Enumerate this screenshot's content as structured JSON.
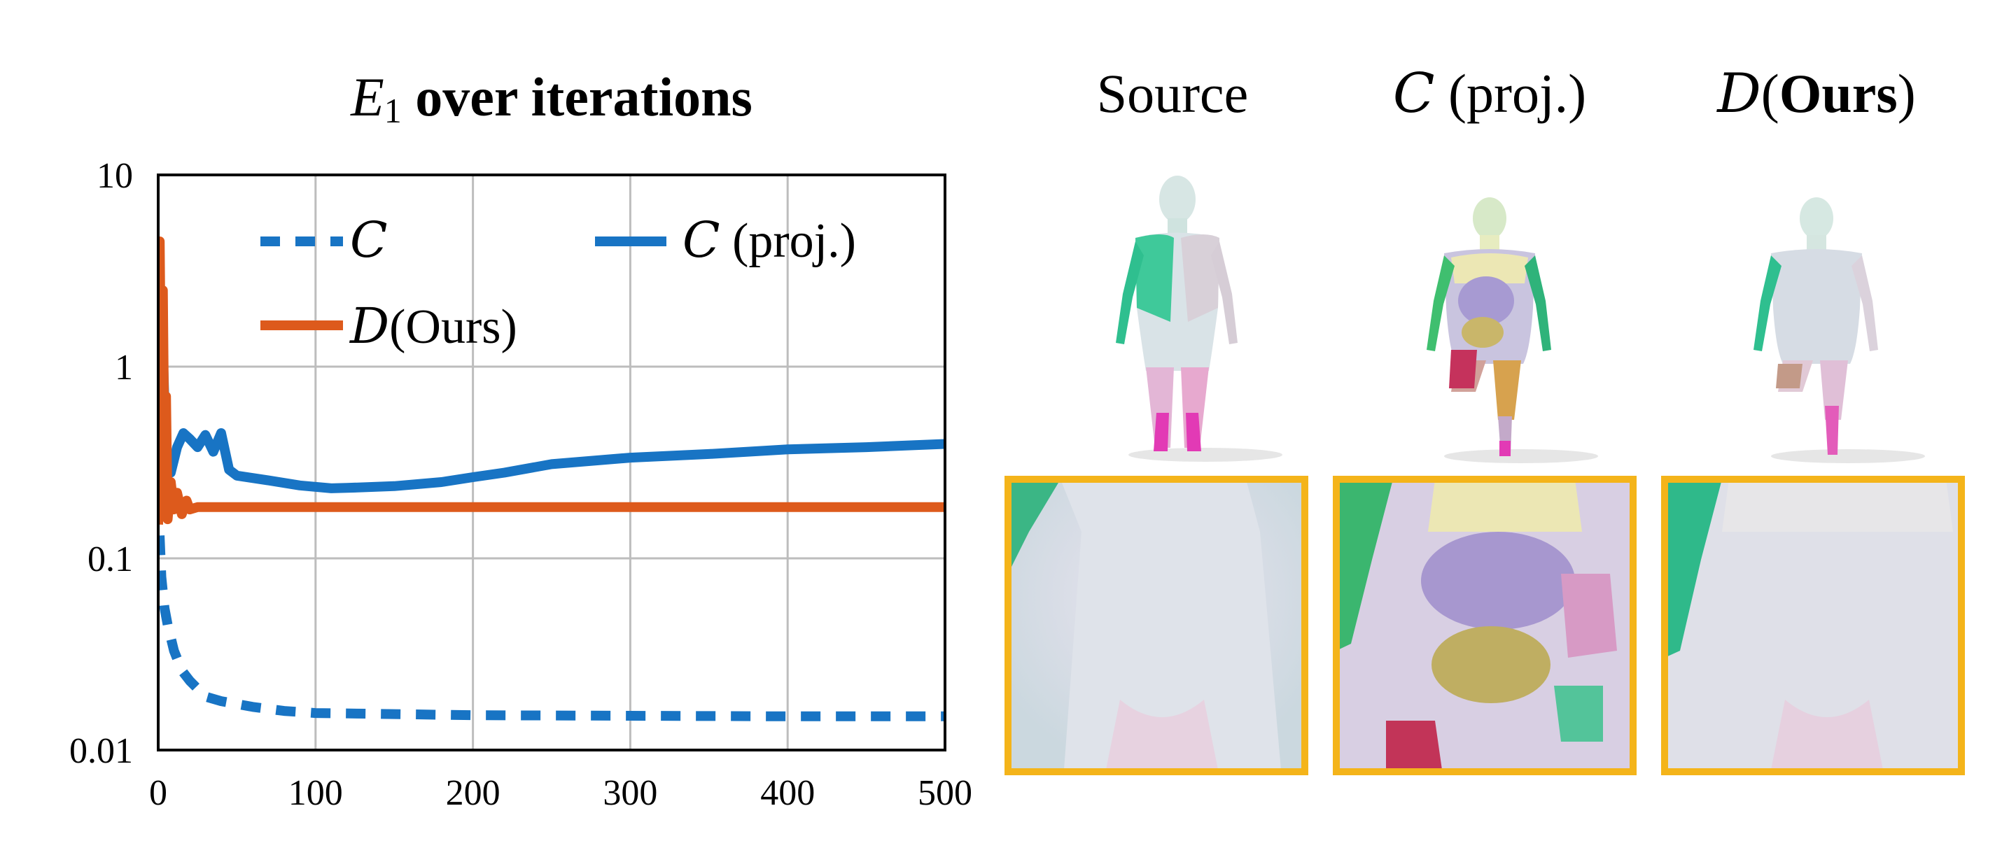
{
  "chart_data": {
    "type": "line",
    "title_var": "E",
    "title_sub": "1",
    "title_rest": " over iterations",
    "xlim": [
      0,
      500
    ],
    "ylim": [
      0.01,
      10
    ],
    "yscale": "log",
    "xticks": [
      0,
      100,
      200,
      300,
      400,
      500
    ],
    "xtick_labels": [
      "0",
      "100",
      "200",
      "300",
      "400",
      "500"
    ],
    "yticks": [
      0.01,
      0.1,
      1,
      10
    ],
    "ytick_labels": [
      "0.01",
      "0.1",
      "1",
      "10"
    ],
    "grid": true,
    "legend_position": "top",
    "series": [
      {
        "name": "C",
        "style": "dashed",
        "color": "#1874c4",
        "x": [
          0,
          2,
          4,
          6,
          10,
          15,
          20,
          30,
          40,
          60,
          80,
          100,
          150,
          200,
          300,
          400,
          500
        ],
        "y": [
          0.2,
          0.08,
          0.055,
          0.045,
          0.033,
          0.026,
          0.023,
          0.019,
          0.018,
          0.0168,
          0.016,
          0.0156,
          0.0154,
          0.0152,
          0.0151,
          0.015,
          0.015
        ]
      },
      {
        "name": "C (proj.)",
        "style": "solid",
        "color": "#1874c4",
        "x": [
          0,
          3,
          5,
          8,
          12,
          16,
          20,
          25,
          30,
          35,
          40,
          45,
          50,
          70,
          90,
          110,
          120,
          150,
          180,
          200,
          220,
          250,
          300,
          350,
          400,
          450,
          500
        ],
        "y": [
          0.17,
          1.2,
          0.35,
          0.28,
          0.38,
          0.45,
          0.42,
          0.38,
          0.44,
          0.36,
          0.45,
          0.29,
          0.27,
          0.255,
          0.24,
          0.232,
          0.233,
          0.238,
          0.25,
          0.265,
          0.28,
          0.31,
          0.335,
          0.35,
          0.37,
          0.38,
          0.395
        ]
      },
      {
        "name": "D(Ours)",
        "style": "solid",
        "color": "#dd5a1c",
        "x": [
          0,
          1,
          2,
          3,
          4,
          5,
          6,
          8,
          10,
          12,
          15,
          18,
          20,
          25,
          40,
          100,
          200,
          300,
          400,
          500
        ],
        "y": [
          0.15,
          4.5,
          0.5,
          2.5,
          0.3,
          0.7,
          0.16,
          0.25,
          0.18,
          0.22,
          0.17,
          0.2,
          0.18,
          0.185,
          0.185,
          0.185,
          0.185,
          0.185,
          0.185,
          0.185
        ]
      }
    ],
    "legend": [
      {
        "symbol": "C",
        "suffix": ""
      },
      {
        "symbol": "C",
        "suffix": " (proj.)"
      },
      {
        "symbol": "D",
        "suffix": "(Ours)"
      }
    ]
  },
  "panels": [
    {
      "title_main": "Source",
      "title_prefix": "",
      "title_bold": "",
      "title_suffix": ""
    },
    {
      "title_main": "",
      "title_prefix": "C",
      "title_bold": "",
      "title_suffix": " (proj.)"
    },
    {
      "title_main": "",
      "title_prefix": "D",
      "title_bold": "Ours",
      "title_suffix": ")"
    }
  ],
  "colors": {
    "frame": "#f4b41a",
    "grid": "#bdbdbd",
    "blue": "#1874c4",
    "orange": "#dd5a1c"
  }
}
